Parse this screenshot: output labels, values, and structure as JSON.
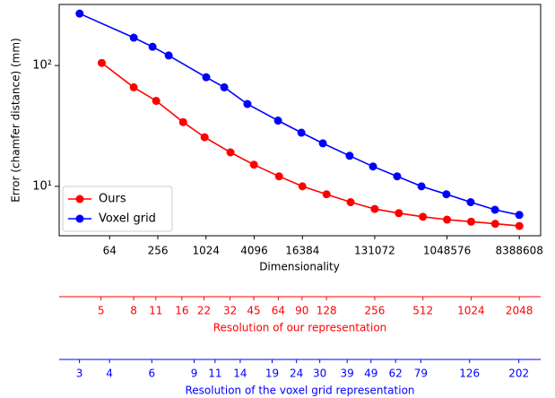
{
  "chart_data": {
    "type": "line",
    "xlabel": "Dimensionality",
    "ylabel": "Error (chamfer distance) (mm)",
    "xscale": "log",
    "yscale": "log",
    "xlim": [
      15,
      15500000
    ],
    "ylim": [
      3.9,
      320
    ],
    "xticks": [
      64,
      256,
      1024,
      4096,
      16384,
      131072,
      1048576,
      8388608
    ],
    "yticks": [
      {
        "value": 10,
        "label": "10¹"
      },
      {
        "value": 100,
        "label": "10²"
      }
    ],
    "legend": "lower left",
    "series": [
      {
        "name": "Ours",
        "color": "#ff0000",
        "x": [
          51,
          128,
          244,
          530,
          983,
          2070,
          4060,
          8370,
          16384,
          32768,
          65536,
          131072,
          262144,
          524288,
          1048576,
          2097152,
          4194304,
          8388608
        ],
        "values": [
          105,
          66,
          51,
          34,
          25.5,
          19.1,
          15.1,
          12.1,
          10,
          8.6,
          7.4,
          6.5,
          6.0,
          5.6,
          5.3,
          5.1,
          4.9,
          4.7
        ]
      },
      {
        "name": "Voxel grid",
        "color": "#0000ff",
        "x": [
          27,
          128,
          220,
          350,
          1030,
          1730,
          3370,
          8130,
          15900,
          29500,
          63700,
          124800,
          250000,
          503000,
          1030000,
          2070000,
          4170000,
          8388608
        ],
        "values": [
          269,
          170,
          143,
          121,
          80,
          66,
          48,
          35,
          27.8,
          22.7,
          17.9,
          14.6,
          12.1,
          10,
          8.6,
          7.4,
          6.4,
          5.8
        ]
      }
    ],
    "secondary_axes": [
      {
        "label": "Resolution of our representation",
        "color": "#ff0000",
        "scale": "log",
        "xlim": [
          2.74,
          2784
        ],
        "xticks": [
          5,
          8,
          11,
          16,
          22,
          32,
          45,
          64,
          90,
          128,
          256,
          512,
          1024,
          2048
        ]
      },
      {
        "label": "Resolution of the voxel grid representation",
        "color": "#0000ff",
        "scale": "log",
        "xlim": [
          2.47,
          249
        ],
        "xticks": [
          3,
          4,
          6,
          9,
          11,
          14,
          19,
          24,
          30,
          39,
          49,
          62,
          79,
          126,
          202
        ]
      }
    ]
  }
}
